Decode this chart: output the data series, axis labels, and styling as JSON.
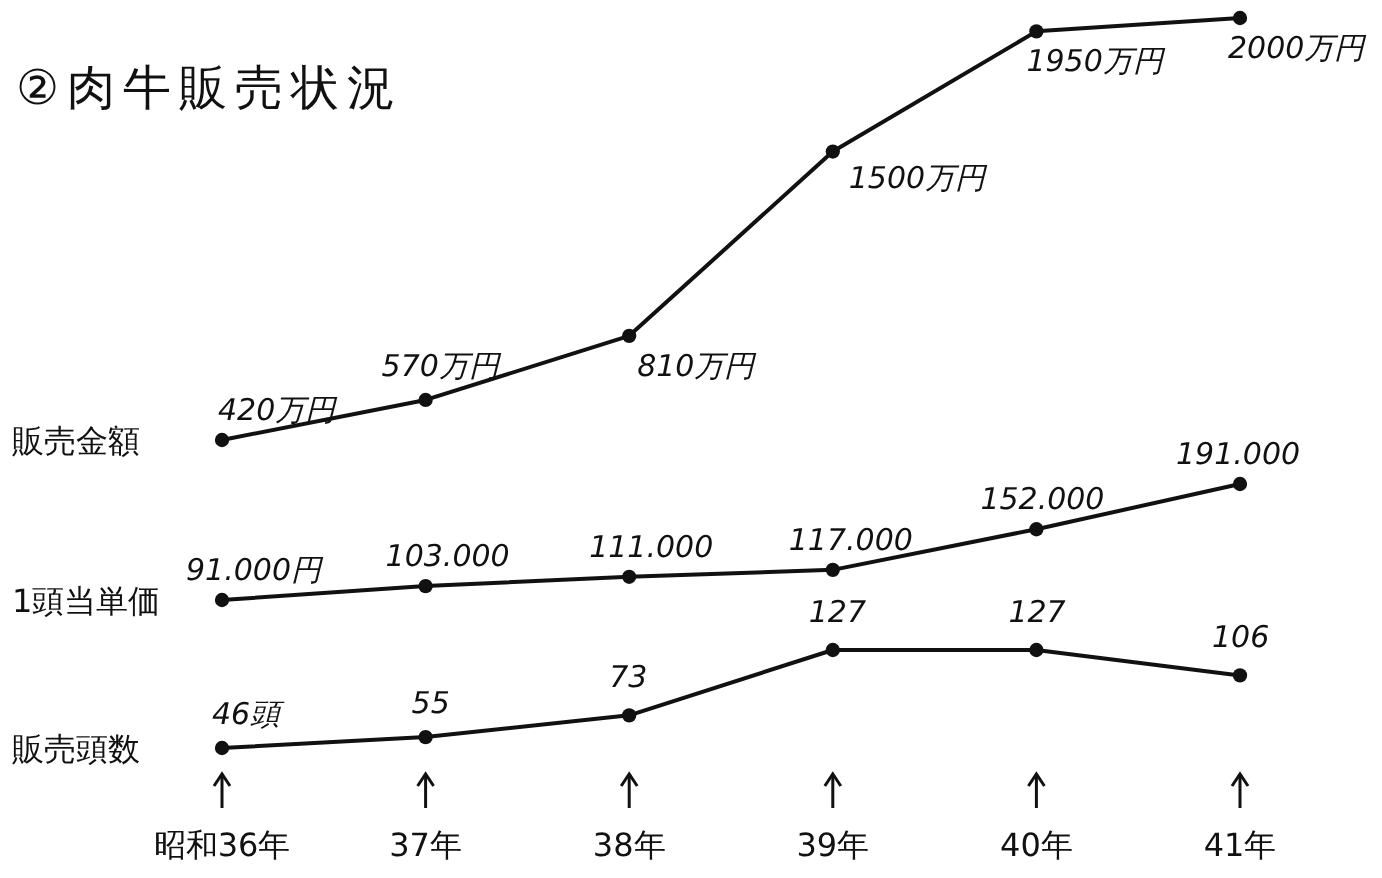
{
  "chart_data": [
    {
      "type": "line",
      "title": "②肉牛販売状況",
      "tick_labels": false,
      "marker": "circle",
      "line_style": "solid",
      "ylabel": "販売金額",
      "series": [
        {
          "color": "#111111",
          "values": [
            420,
            570,
            810,
            1500,
            1950,
            2000
          ],
          "value_labels": [
            "420万円",
            "570万円",
            "810万円",
            "1500万円",
            "1950万円",
            "2000万円"
          ]
        }
      ]
    },
    {
      "type": "line",
      "tick_labels": false,
      "marker": "circle",
      "line_style": "solid",
      "ylabel": "1頭当単価",
      "series": [
        {
          "color": "#111111",
          "values": [
            91000,
            103000,
            111000,
            117000,
            152000,
            191000
          ],
          "value_labels": [
            "91.000円",
            "103.000",
            "111.000",
            "117.000",
            "152.000",
            "191.000"
          ]
        }
      ]
    },
    {
      "type": "line",
      "categories": [
        "昭和36年",
        "37年",
        "38年",
        "39年",
        "40年",
        "41年"
      ],
      "tick_labels": "x",
      "marker": "circle",
      "line_style": "solid",
      "ylabel": "販売頭数",
      "series": [
        {
          "color": "#111111",
          "values": [
            46,
            55,
            73,
            127,
            127,
            106
          ],
          "value_labels": [
            "46頭",
            "55",
            "73",
            "127",
            "127",
            "106"
          ]
        }
      ]
    }
  ]
}
